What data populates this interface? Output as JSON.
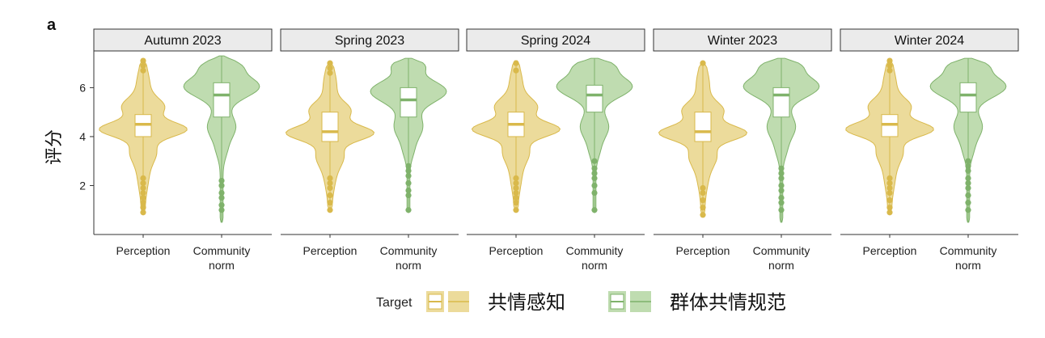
{
  "panel_letter": "a",
  "legend": {
    "title": "Target",
    "items": [
      {
        "label": "共情感知"
      },
      {
        "label": "群体共情规范"
      }
    ]
  },
  "colors": {
    "perception_fill": "#ecdb9b",
    "perception_line": "#d9b94b",
    "norm_fill": "#bfdcb0",
    "norm_line": "#7fb26b",
    "strip_fill": "#ebebeb"
  },
  "chart_data": {
    "type": "violin",
    "ylabel": "评分",
    "ylim": [
      0,
      7.5
    ],
    "yticks": [
      2,
      4,
      6
    ],
    "categories": [
      {
        "key": "perception",
        "label_lines": [
          "Perception"
        ]
      },
      {
        "key": "norm",
        "label_lines": [
          "Community",
          "norm"
        ]
      }
    ],
    "panels": [
      {
        "title": "Autumn 2023",
        "perception": {
          "min": 0.9,
          "max": 7.1,
          "q1": 4.0,
          "median": 4.5,
          "q3": 4.9,
          "outliers": [
            7.1,
            6.9,
            6.7,
            2.3,
            2.1,
            1.9,
            1.7,
            1.5,
            1.3,
            1.1,
            0.9
          ]
        },
        "norm": {
          "min": 0.5,
          "max": 7.3,
          "q1": 4.8,
          "median": 5.7,
          "q3": 6.2,
          "outliers": [
            2.2,
            2.0,
            1.7,
            1.5,
            1.2,
            1.0
          ]
        }
      },
      {
        "title": "Spring 2023",
        "perception": {
          "min": 1.0,
          "max": 7.0,
          "q1": 3.8,
          "median": 4.2,
          "q3": 5.0,
          "outliers": [
            7.0,
            6.8,
            6.6,
            2.3,
            2.1,
            1.9,
            1.6,
            1.3,
            1.0
          ]
        },
        "norm": {
          "min": 0.9,
          "max": 7.2,
          "q1": 4.8,
          "median": 5.5,
          "q3": 6.0,
          "outliers": [
            2.8,
            2.6,
            2.4,
            2.1,
            1.8,
            1.6,
            1.0
          ]
        }
      },
      {
        "title": "Spring 2024",
        "perception": {
          "min": 1.0,
          "max": 7.1,
          "q1": 4.0,
          "median": 4.5,
          "q3": 5.0,
          "outliers": [
            7.0,
            6.7,
            2.3,
            2.1,
            1.9,
            1.7,
            1.5,
            1.3,
            1.0
          ]
        },
        "norm": {
          "min": 0.9,
          "max": 7.2,
          "q1": 5.0,
          "median": 5.7,
          "q3": 6.1,
          "outliers": [
            3.0,
            2.7,
            2.5,
            2.3,
            2.0,
            1.7,
            1.0
          ]
        }
      },
      {
        "title": "Winter 2023",
        "perception": {
          "min": 0.8,
          "max": 7.0,
          "q1": 3.8,
          "median": 4.2,
          "q3": 5.0,
          "outliers": [
            7.0,
            1.9,
            1.7,
            1.4,
            1.1,
            0.8
          ]
        },
        "norm": {
          "min": 0.5,
          "max": 7.2,
          "q1": 4.8,
          "median": 5.7,
          "q3": 6.0,
          "outliers": [
            2.7,
            2.5,
            2.3,
            2.0,
            1.8,
            1.5,
            1.3,
            1.0
          ]
        }
      },
      {
        "title": "Winter 2024",
        "perception": {
          "min": 0.9,
          "max": 7.1,
          "q1": 4.0,
          "median": 4.5,
          "q3": 4.9,
          "outliers": [
            7.1,
            6.9,
            6.7,
            2.3,
            2.1,
            1.9,
            1.7,
            1.4,
            1.1,
            0.9
          ]
        },
        "norm": {
          "min": 0.5,
          "max": 7.2,
          "q1": 5.0,
          "median": 5.7,
          "q3": 6.2,
          "outliers": [
            3.0,
            2.8,
            2.6,
            2.3,
            2.1,
            1.9,
            1.6,
            1.3,
            1.0
          ]
        }
      }
    ],
    "grid": false,
    "legend_position": "bottom"
  }
}
